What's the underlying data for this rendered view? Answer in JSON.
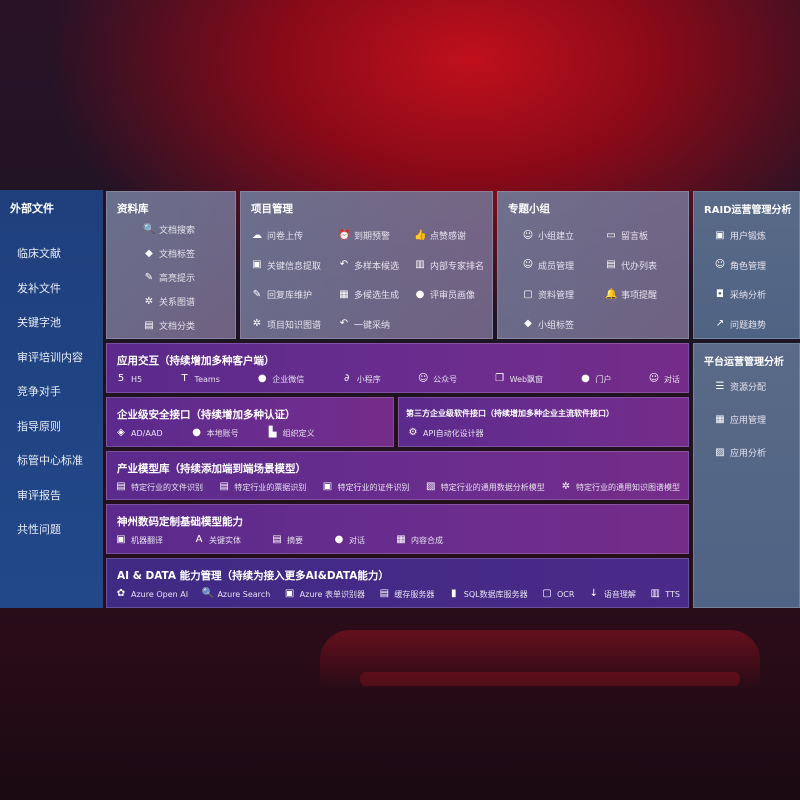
{
  "sidebar": {
    "title": "外部文件",
    "items": [
      "临床文献",
      "发补文件",
      "关键字池",
      "审评培训内容",
      "竞争对手",
      "指导原则",
      "标管中心标准",
      "审评报告",
      "共性问题"
    ]
  },
  "library": {
    "title": "资料库",
    "items": [
      {
        "label": "文档搜索",
        "icon": "document-search-icon"
      },
      {
        "label": "文档标签",
        "icon": "tag-icon"
      },
      {
        "label": "高亮提示",
        "icon": "highlight-pen-icon"
      },
      {
        "label": "关系图谱",
        "icon": "graph-icon"
      },
      {
        "label": "文档分类",
        "icon": "document-category-icon"
      }
    ]
  },
  "project": {
    "title": "项目管理",
    "items": [
      {
        "label": "问卷上传",
        "icon": "cloud-upload-icon"
      },
      {
        "label": "到期预警",
        "icon": "alarm-icon"
      },
      {
        "label": "点赞感谢",
        "icon": "thumbs-up-icon"
      },
      {
        "label": "关键信息提取",
        "icon": "window-icon"
      },
      {
        "label": "多样本候选",
        "icon": "reply-icon"
      },
      {
        "label": "内部专家排名",
        "icon": "ranking-icon"
      },
      {
        "label": "回复库维护",
        "icon": "pen-icon"
      },
      {
        "label": "多候选生成",
        "icon": "puzzle-icon"
      },
      {
        "label": "评审员画像",
        "icon": "user-icon"
      },
      {
        "label": "项目知识图谱",
        "icon": "graph-icon"
      },
      {
        "label": "一键采纳",
        "icon": "reply-icon"
      }
    ]
  },
  "group": {
    "title": "专题小组",
    "items": [
      {
        "label": "小组建立",
        "icon": "users-icon"
      },
      {
        "label": "留言板",
        "icon": "bbs-icon"
      },
      {
        "label": "成员管理",
        "icon": "add-user-icon"
      },
      {
        "label": "代办列表",
        "icon": "clipboard-icon"
      },
      {
        "label": "资料管理",
        "icon": "folder-icon"
      },
      {
        "label": "事项提醒",
        "icon": "bell-icon"
      },
      {
        "label": "小组标签",
        "icon": "tag-icon"
      }
    ]
  },
  "raid": {
    "title": "RAID运营管理分析",
    "items": [
      {
        "label": "用户锻炼",
        "icon": "id-card-icon"
      },
      {
        "label": "角色管理",
        "icon": "users-icon"
      },
      {
        "label": "采纳分析",
        "icon": "qa-icon"
      },
      {
        "label": "问题趋势",
        "icon": "trend-chart-icon"
      }
    ]
  },
  "platform": {
    "title": "平台运营管理分析",
    "items": [
      {
        "label": "资源分配",
        "icon": "checklist-icon"
      },
      {
        "label": "应用管理",
        "icon": "apps-icon"
      },
      {
        "label": "应用分析",
        "icon": "analysis-icon"
      }
    ]
  },
  "interaction": {
    "title": "应用交互（持续增加多种客户端）",
    "items": [
      {
        "label": "H5",
        "icon": "html5-icon"
      },
      {
        "label": "Teams",
        "icon": "teams-icon"
      },
      {
        "label": "企业微信",
        "icon": "wecom-icon"
      },
      {
        "label": "小程序",
        "icon": "mini-program-icon"
      },
      {
        "label": "公众号",
        "icon": "official-account-icon"
      },
      {
        "label": "Web飘窗",
        "icon": "web-window-icon"
      },
      {
        "label": "门户",
        "icon": "portal-icon"
      },
      {
        "label": "对话",
        "icon": "chat-users-icon"
      }
    ]
  },
  "security": {
    "title": "企业级安全接口（持续增加多种认证）",
    "items": [
      {
        "label": "AD/AAD",
        "icon": "ad-icon"
      },
      {
        "label": "本地账号",
        "icon": "local-account-icon"
      },
      {
        "label": "组织定义",
        "icon": "organization-icon"
      }
    ]
  },
  "thirdparty": {
    "title": "第三方企业级软件接口（持续增加多种企业主流软件接口）",
    "items": [
      {
        "label": "API自动化设计器",
        "icon": "api-gear-icon"
      }
    ]
  },
  "industry": {
    "title": "产业模型库（持续添加端到端场景模型）",
    "items": [
      {
        "label": "特定行业的文件识别",
        "icon": "file-icon"
      },
      {
        "label": "特定行业的票据识别",
        "icon": "receipt-icon"
      },
      {
        "label": "特定行业的证件识别",
        "icon": "id-card-icon"
      },
      {
        "label": "特定行业的通用数据分析模型",
        "icon": "data-analysis-icon"
      },
      {
        "label": "特定行业的通用知识图谱模型",
        "icon": "graph-icon"
      }
    ]
  },
  "foundation": {
    "title": "神州数码定制基础模型能力",
    "items": [
      {
        "label": "机器翻译",
        "icon": "translate-icon"
      },
      {
        "label": "关键实体",
        "icon": "entity-icon"
      },
      {
        "label": "摘要",
        "icon": "summary-icon"
      },
      {
        "label": "对话",
        "icon": "chat-icon"
      },
      {
        "label": "内容合成",
        "icon": "compose-icon"
      }
    ]
  },
  "aidata": {
    "title": "AI & DATA 能力管理（持续为接入更多AI&DATA能力）",
    "items": [
      {
        "label": "Azure Open AI",
        "icon": "openai-icon"
      },
      {
        "label": "Azure Search",
        "icon": "search-icon"
      },
      {
        "label": "Azure 表单识别器",
        "icon": "form-recognizer-icon"
      },
      {
        "label": "缓存服务器",
        "icon": "cache-server-icon"
      },
      {
        "label": "SQL数据库服务器",
        "icon": "database-icon"
      },
      {
        "label": "OCR",
        "icon": "ocr-icon"
      },
      {
        "label": "语音理解",
        "icon": "speech-icon"
      },
      {
        "label": "TTS",
        "icon": "tts-icon"
      }
    ]
  }
}
